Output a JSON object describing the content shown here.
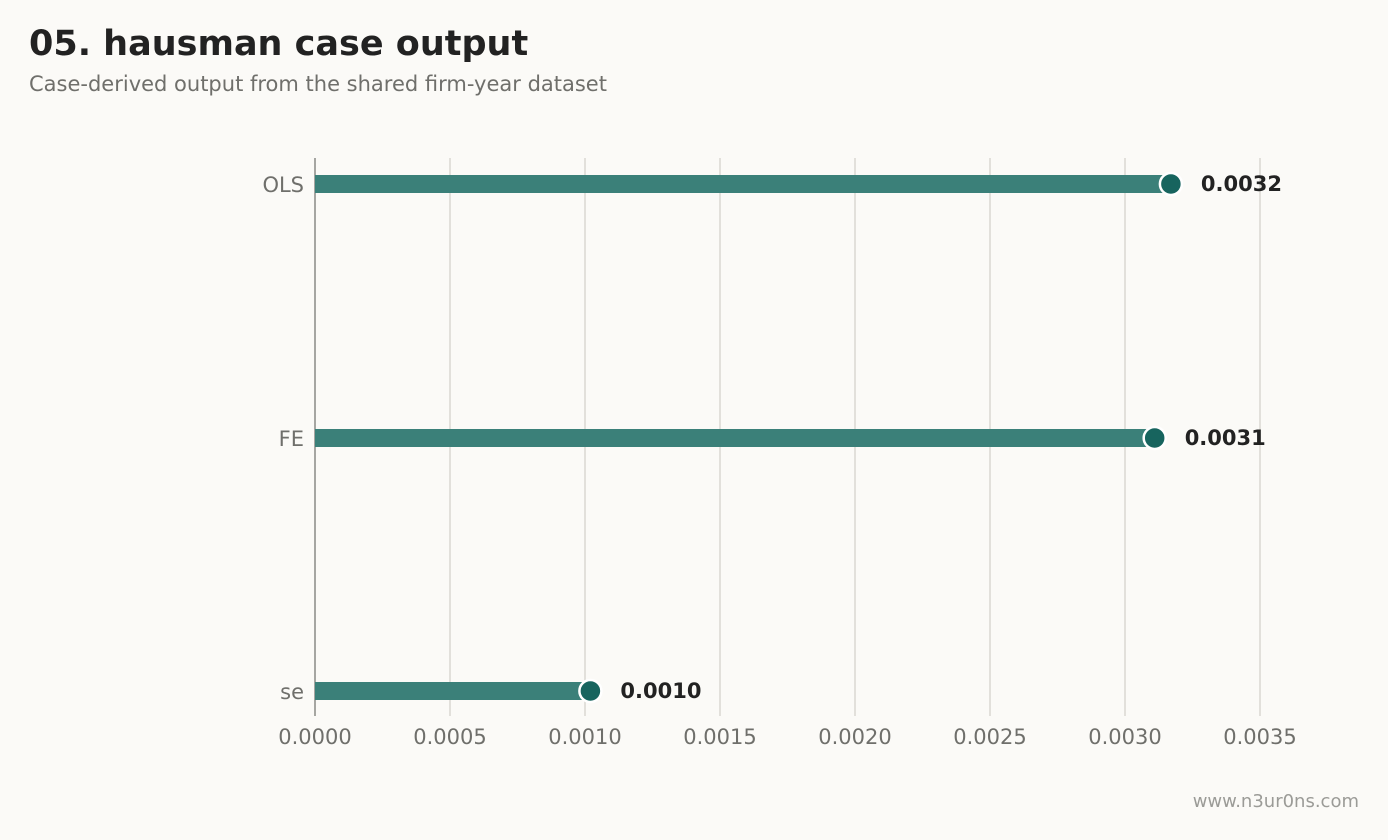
{
  "header": {
    "title": "05. hausman case output",
    "subtitle": "Case-derived output from the shared firm-year dataset"
  },
  "footer": {
    "credit": "www.n3ur0ns.com"
  },
  "chart_data": {
    "type": "bar",
    "orientation": "horizontal",
    "style": "lollipop",
    "title": "05. hausman case output",
    "subtitle": "Case-derived output from the shared firm-year dataset",
    "xlabel": "",
    "ylabel": "",
    "categories": [
      "OLS",
      "FE",
      "se"
    ],
    "values": [
      0.00317,
      0.00311,
      0.00102
    ],
    "value_labels": [
      "0.0032",
      "0.0031",
      "0.0010"
    ],
    "xlim": [
      0,
      0.0035
    ],
    "xticks": [
      0,
      0.0005,
      0.001,
      0.0015,
      0.002,
      0.0025,
      0.003,
      0.0035
    ],
    "xtick_labels": [
      "0.0000",
      "0.0005",
      "0.0010",
      "0.0015",
      "0.0020",
      "0.0025",
      "0.0030",
      "0.0035"
    ],
    "grid": "vertical",
    "legend": "none",
    "colors": {
      "bar": "#3b8079",
      "dot": "#17645e",
      "grid": "#d9d8d2",
      "axis": "#8a8a86"
    }
  }
}
